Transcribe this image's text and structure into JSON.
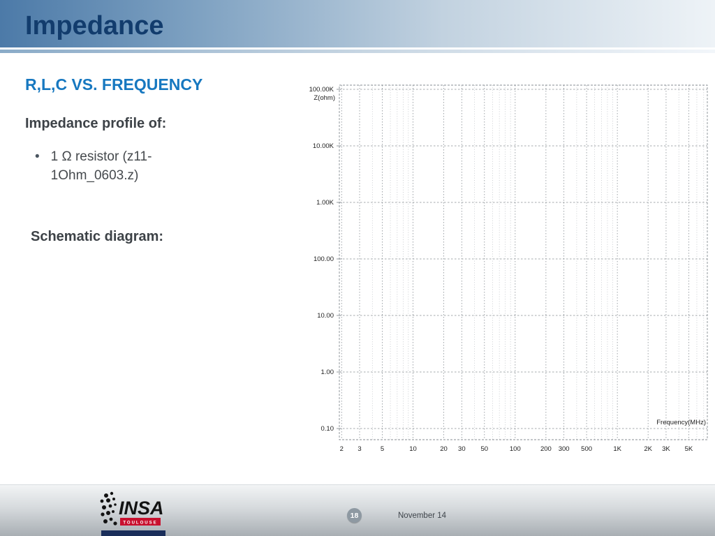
{
  "slide": {
    "title": "Impedance",
    "heading": "R,L,C VS. FREQUENCY",
    "subheading": "Impedance profile of:",
    "bullet_glyph": "•",
    "bullet": "1 Ω resistor (z11-1Ohm_0603.z)",
    "schematic_label": "Schematic diagram:"
  },
  "chart_data": {
    "type": "line",
    "title": "",
    "ylabel": "Z(ohm)",
    "xlabel": "Frequency(MHz)",
    "y_tick_labels": [
      "100.00K",
      "10.00K",
      "1.00K",
      "100.00",
      "10.00",
      "1.00",
      "0.10"
    ],
    "y_tick_values": [
      100000,
      10000,
      1000,
      100,
      10,
      1,
      0.1
    ],
    "x_tick_labels": [
      "2",
      "3",
      "5",
      "10",
      "20",
      "30",
      "50",
      "100",
      "200",
      "300",
      "500",
      "1K",
      "2K",
      "3K",
      "5K"
    ],
    "x_tick_values": [
      2,
      3,
      5,
      10,
      20,
      30,
      50,
      100,
      200,
      300,
      500,
      1000,
      2000,
      3000,
      5000
    ],
    "x_range": [
      1.9,
      7600
    ],
    "y_range": [
      0.1,
      100000
    ],
    "x_scale": "log",
    "y_scale": "log",
    "grid": true,
    "legend": false,
    "series": []
  },
  "footer": {
    "page_number": "18",
    "date": "November 14",
    "logo_text": "INSA",
    "logo_subtext": "TOULOUSE"
  },
  "colors": {
    "header_blue": "#4c7aa8",
    "title_navy": "#123c6d",
    "heading_blue": "#1778c0",
    "body_gray": "#45494d",
    "grid_minor": "#b6babf",
    "grid_major": "#878d93",
    "logo_red": "#c8102e",
    "logo_navy": "#1a2e5a"
  }
}
